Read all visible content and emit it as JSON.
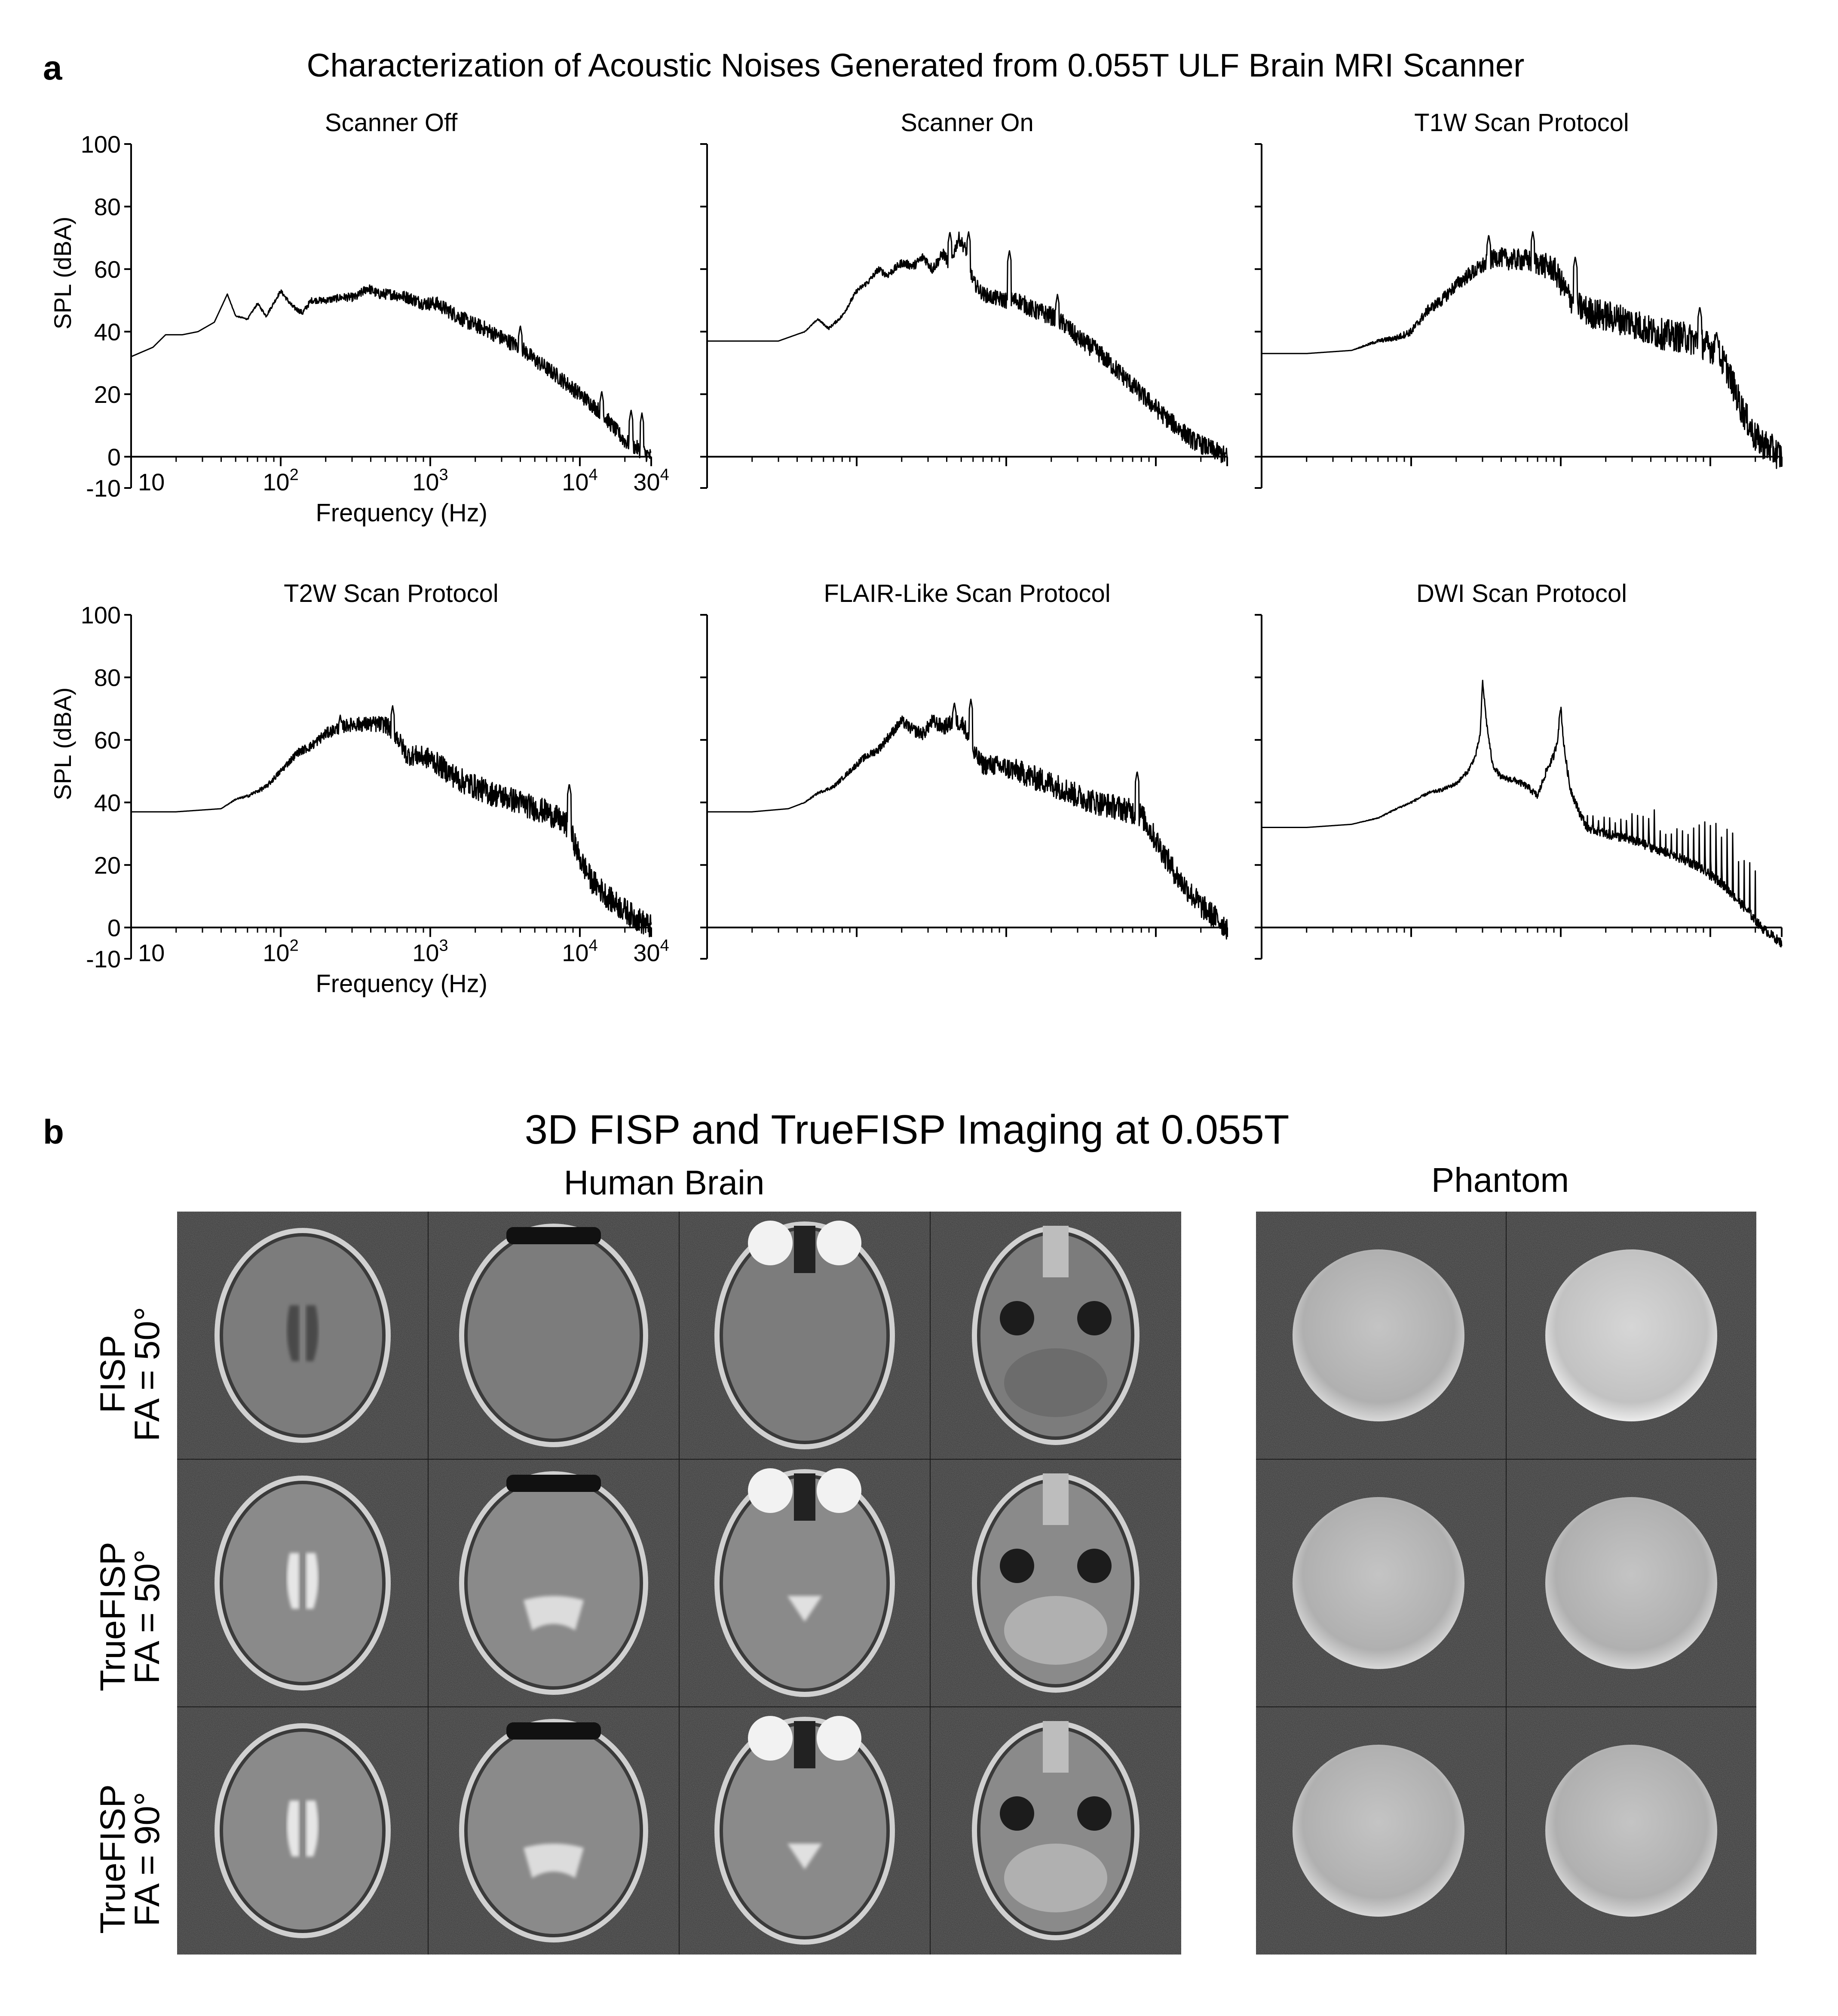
{
  "panel_a": {
    "letter": "a",
    "title": "Characterization of Acoustic Noises Generated from 0.055T ULF Brain MRI Scanner",
    "ylabel": "SPL (dBA)",
    "xlabel": "Frequency (Hz)",
    "ytick_labels": [
      "-10",
      "0",
      "20",
      "40",
      "60",
      "80",
      "100"
    ],
    "xtick_labels": [
      {
        "base": "10",
        "exp": ""
      },
      {
        "base": "10",
        "exp": "2"
      },
      {
        "base": "10",
        "exp": "3"
      },
      {
        "base": "10",
        "exp": "4"
      },
      {
        "base": "30",
        "exp": "4"
      }
    ]
  },
  "chart_data": [
    {
      "type": "line",
      "title": "Scanner Off",
      "xlabel": "Frequency (Hz)",
      "ylabel": "SPL (dBA)",
      "xscale": "log",
      "xlim": [
        10,
        30000
      ],
      "ylim": [
        -10,
        100
      ],
      "show_tick_labels": true,
      "anchors": [
        [
          10,
          32
        ],
        [
          14,
          35
        ],
        [
          17,
          39
        ],
        [
          22,
          39
        ],
        [
          28,
          40
        ],
        [
          36,
          43
        ],
        [
          44,
          52
        ],
        [
          50,
          45
        ],
        [
          60,
          44
        ],
        [
          70,
          49
        ],
        [
          80,
          45
        ],
        [
          100,
          53
        ],
        [
          120,
          48
        ],
        [
          140,
          46
        ],
        [
          160,
          50
        ],
        [
          200,
          50
        ],
        [
          260,
          51
        ],
        [
          320,
          51
        ],
        [
          380,
          54
        ],
        [
          450,
          52
        ],
        [
          550,
          52
        ],
        [
          700,
          51
        ],
        [
          900,
          49
        ],
        [
          1100,
          49
        ],
        [
          1400,
          46
        ],
        [
          1800,
          43
        ],
        [
          2300,
          41
        ],
        [
          3000,
          38
        ],
        [
          4000,
          35
        ],
        [
          5000,
          31
        ],
        [
          7000,
          26
        ],
        [
          10000,
          20
        ],
        [
          14000,
          14
        ],
        [
          20000,
          5
        ],
        [
          30000,
          0
        ]
      ],
      "noise": 2.5,
      "spikes": [
        [
          4000,
          42
        ],
        [
          14000,
          21
        ],
        [
          22000,
          15
        ],
        [
          26000,
          14
        ]
      ]
    },
    {
      "type": "line",
      "title": "Scanner On",
      "xscale": "log",
      "xlim": [
        10,
        30000
      ],
      "ylim": [
        -10,
        100
      ],
      "show_tick_labels": false,
      "anchors": [
        [
          10,
          37
        ],
        [
          20,
          37
        ],
        [
          30,
          37
        ],
        [
          45,
          40
        ],
        [
          55,
          44
        ],
        [
          65,
          41
        ],
        [
          80,
          45
        ],
        [
          100,
          53
        ],
        [
          120,
          56
        ],
        [
          140,
          60
        ],
        [
          160,
          58
        ],
        [
          200,
          62
        ],
        [
          240,
          61
        ],
        [
          280,
          64
        ],
        [
          320,
          60
        ],
        [
          380,
          65
        ],
        [
          420,
          61
        ],
        [
          480,
          70
        ],
        [
          540,
          66
        ],
        [
          600,
          56
        ],
        [
          700,
          52
        ],
        [
          800,
          51
        ],
        [
          1000,
          50
        ],
        [
          1200,
          50
        ],
        [
          1500,
          47
        ],
        [
          2000,
          45
        ],
        [
          2500,
          42
        ],
        [
          3000,
          38
        ],
        [
          4000,
          34
        ],
        [
          6000,
          26
        ],
        [
          8000,
          20
        ],
        [
          12000,
          12
        ],
        [
          18000,
          5
        ],
        [
          30000,
          0
        ]
      ],
      "noise": 3,
      "spikes": [
        [
          420,
          72
        ],
        [
          560,
          72
        ],
        [
          1050,
          66
        ],
        [
          2200,
          52
        ]
      ]
    },
    {
      "type": "line",
      "title": "T1W Scan Protocol",
      "xscale": "log",
      "xlim": [
        10,
        30000
      ],
      "ylim": [
        -10,
        100
      ],
      "show_tick_labels": false,
      "anchors": [
        [
          10,
          33
        ],
        [
          20,
          33
        ],
        [
          40,
          34
        ],
        [
          60,
          37
        ],
        [
          80,
          38
        ],
        [
          100,
          40
        ],
        [
          130,
          47
        ],
        [
          160,
          50
        ],
        [
          200,
          55
        ],
        [
          240,
          58
        ],
        [
          280,
          60
        ],
        [
          320,
          62
        ],
        [
          380,
          64
        ],
        [
          450,
          63
        ],
        [
          550,
          63
        ],
        [
          700,
          62
        ],
        [
          900,
          60
        ],
        [
          1100,
          52
        ],
        [
          1300,
          48
        ],
        [
          1600,
          46
        ],
        [
          2000,
          45
        ],
        [
          2500,
          44
        ],
        [
          3000,
          43
        ],
        [
          4000,
          40
        ],
        [
          5000,
          39
        ],
        [
          7000,
          38
        ],
        [
          9000,
          36
        ],
        [
          11000,
          34
        ],
        [
          13000,
          28
        ],
        [
          16000,
          16
        ],
        [
          20000,
          6
        ],
        [
          30000,
          0
        ]
      ],
      "noise": 5,
      "spikes": [
        [
          330,
          71
        ],
        [
          650,
          72
        ],
        [
          1250,
          64
        ],
        [
          8500,
          48
        ],
        [
          11000,
          40
        ]
      ]
    },
    {
      "type": "line",
      "title": "T2W Scan Protocol",
      "xlabel": "Frequency (Hz)",
      "ylabel": "SPL (dBA)",
      "xscale": "log",
      "xlim": [
        10,
        30000
      ],
      "ylim": [
        -10,
        100
      ],
      "show_tick_labels": true,
      "anchors": [
        [
          10,
          37
        ],
        [
          20,
          37
        ],
        [
          40,
          38
        ],
        [
          50,
          41
        ],
        [
          60,
          42
        ],
        [
          80,
          45
        ],
        [
          100,
          50
        ],
        [
          130,
          56
        ],
        [
          160,
          58
        ],
        [
          200,
          62
        ],
        [
          250,
          64
        ],
        [
          300,
          65
        ],
        [
          400,
          65
        ],
        [
          500,
          65
        ],
        [
          600,
          61
        ],
        [
          700,
          55
        ],
        [
          800,
          55
        ],
        [
          1000,
          54
        ],
        [
          1300,
          50
        ],
        [
          1600,
          47
        ],
        [
          2000,
          45
        ],
        [
          2500,
          43
        ],
        [
          3000,
          42
        ],
        [
          4000,
          40
        ],
        [
          5000,
          38
        ],
        [
          6000,
          37
        ],
        [
          7000,
          35
        ],
        [
          8500,
          32
        ],
        [
          10000,
          22
        ],
        [
          12000,
          15
        ],
        [
          16000,
          9
        ],
        [
          22000,
          4
        ],
        [
          30000,
          0
        ]
      ],
      "noise": 4,
      "spikes": [
        [
          250,
          68
        ],
        [
          560,
          71
        ],
        [
          8500,
          46
        ]
      ]
    },
    {
      "type": "line",
      "title": "FLAIR-Like Scan Protocol",
      "xscale": "log",
      "xlim": [
        10,
        30000
      ],
      "ylim": [
        -10,
        100
      ],
      "show_tick_labels": false,
      "anchors": [
        [
          10,
          37
        ],
        [
          20,
          37
        ],
        [
          35,
          38
        ],
        [
          45,
          40
        ],
        [
          55,
          43
        ],
        [
          70,
          45
        ],
        [
          90,
          50
        ],
        [
          110,
          54
        ],
        [
          140,
          57
        ],
        [
          170,
          62
        ],
        [
          200,
          66
        ],
        [
          240,
          63
        ],
        [
          280,
          62
        ],
        [
          320,
          66
        ],
        [
          380,
          64
        ],
        [
          450,
          66
        ],
        [
          520,
          65
        ],
        [
          600,
          56
        ],
        [
          700,
          52
        ],
        [
          800,
          52
        ],
        [
          1000,
          51
        ],
        [
          1200,
          50
        ],
        [
          1500,
          48
        ],
        [
          2000,
          46
        ],
        [
          2500,
          44
        ],
        [
          3000,
          42
        ],
        [
          4000,
          40
        ],
        [
          6000,
          38
        ],
        [
          8000,
          36
        ],
        [
          10000,
          28
        ],
        [
          14000,
          16
        ],
        [
          20000,
          7
        ],
        [
          30000,
          0
        ]
      ],
      "noise": 4,
      "spikes": [
        [
          450,
          72
        ],
        [
          580,
          73
        ],
        [
          7500,
          50
        ]
      ]
    },
    {
      "type": "line",
      "title": "DWI Scan Protocol",
      "xscale": "log",
      "xlim": [
        10,
        30000
      ],
      "ylim": [
        -10,
        100
      ],
      "show_tick_labels": false,
      "anchors": [
        [
          10,
          32
        ],
        [
          20,
          32
        ],
        [
          40,
          33
        ],
        [
          60,
          35
        ],
        [
          80,
          38
        ],
        [
          100,
          40
        ],
        [
          130,
          43
        ],
        [
          160,
          44
        ],
        [
          200,
          46
        ],
        [
          240,
          50
        ],
        [
          270,
          55
        ],
        [
          290,
          62
        ],
        [
          300,
          79
        ],
        [
          320,
          65
        ],
        [
          350,
          52
        ],
        [
          400,
          48
        ],
        [
          500,
          47
        ],
        [
          600,
          45
        ],
        [
          700,
          42
        ],
        [
          800,
          50
        ],
        [
          900,
          55
        ],
        [
          950,
          60
        ],
        [
          1000,
          71
        ],
        [
          1050,
          58
        ],
        [
          1150,
          45
        ],
        [
          1300,
          38
        ],
        [
          1500,
          32
        ],
        [
          2000,
          30
        ],
        [
          3000,
          28
        ],
        [
          5000,
          24
        ],
        [
          8000,
          20
        ],
        [
          12000,
          14
        ],
        [
          18000,
          5
        ],
        [
          22000,
          0
        ],
        [
          30000,
          -5
        ]
      ],
      "noise": 1.5,
      "comb": {
        "start": 1500,
        "end": 20000,
        "step": 1.09,
        "top": 38
      },
      "spikes": []
    }
  ],
  "panel_b": {
    "letter": "b",
    "title": "3D FISP and TrueFISP Imaging at 0.055T",
    "human_label": "Human Brain",
    "phantom_label": "Phantom",
    "rows": [
      {
        "line1": "FISP",
        "line2": "FA = 50°"
      },
      {
        "line1": "TrueFISP",
        "line2": "FA = 50°"
      },
      {
        "line1": "TrueFISP",
        "line2": "FA = 90°"
      }
    ],
    "colors": {
      "background": "#0d0d0d",
      "tissue": "#9a9a9a",
      "csf_bright": "#e6e6e6",
      "phantom": "#b8b8b8"
    }
  }
}
